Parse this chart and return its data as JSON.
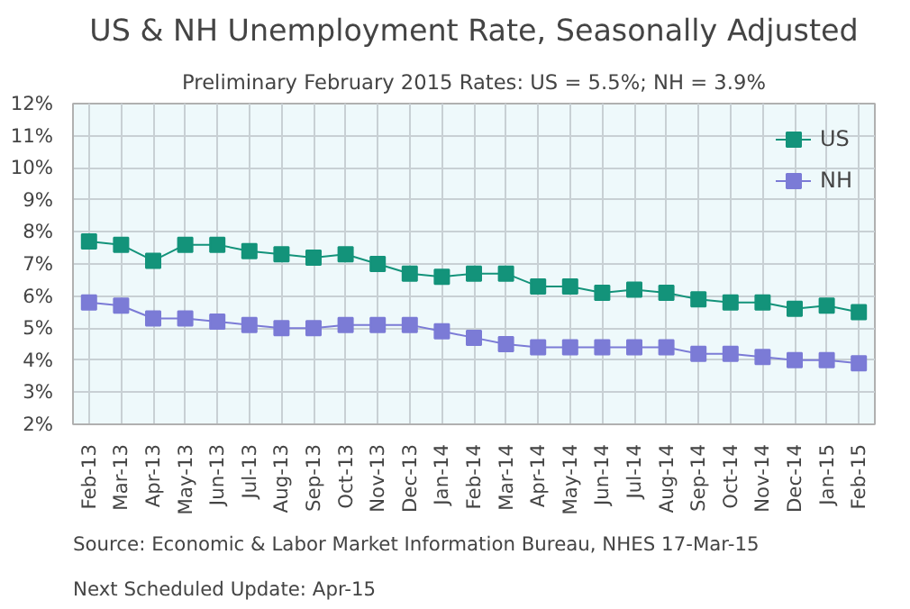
{
  "chart_data": {
    "type": "line",
    "title": "US & NH Unemployment Rate, Seasonally Adjusted",
    "subtitle": "Preliminary February 2015 Rates: US = 5.5%; NH = 3.9%",
    "categories": [
      "Feb-13",
      "Mar-13",
      "Apr-13",
      "May-13",
      "Jun-13",
      "Jul-13",
      "Aug-13",
      "Sep-13",
      "Oct-13",
      "Nov-13",
      "Dec-13",
      "Jan-14",
      "Feb-14",
      "Mar-14",
      "Apr-14",
      "May-14",
      "Jun-14",
      "Jul-14",
      "Aug-14",
      "Sep-14",
      "Oct-14",
      "Nov-14",
      "Dec-14",
      "Jan-15",
      "Feb-15"
    ],
    "series": [
      {
        "name": "US",
        "color": "#13937a",
        "values": [
          7.7,
          7.6,
          7.1,
          7.6,
          7.6,
          7.4,
          7.3,
          7.2,
          7.3,
          7.0,
          6.7,
          6.6,
          6.7,
          6.7,
          6.3,
          6.3,
          6.1,
          6.2,
          6.1,
          5.9,
          5.8,
          5.8,
          5.6,
          5.7,
          5.5
        ]
      },
      {
        "name": "NH",
        "color": "#7b7bd6",
        "values": [
          5.8,
          5.7,
          5.3,
          5.3,
          5.2,
          5.1,
          5.0,
          5.0,
          5.1,
          5.1,
          5.1,
          4.9,
          4.7,
          4.5,
          4.4,
          4.4,
          4.4,
          4.4,
          4.4,
          4.2,
          4.2,
          4.1,
          4.0,
          4.0,
          3.9
        ]
      }
    ],
    "ylim": [
      2,
      12
    ],
    "yticks": [
      {
        "value": 2,
        "label": "2%"
      },
      {
        "value": 3,
        "label": "3%"
      },
      {
        "value": 4,
        "label": "4%"
      },
      {
        "value": 5,
        "label": "5%"
      },
      {
        "value": 6,
        "label": "6%"
      },
      {
        "value": 7,
        "label": "7%"
      },
      {
        "value": 8,
        "label": "8%"
      },
      {
        "value": 9,
        "label": "9%"
      },
      {
        "value": 10,
        "label": "10%"
      },
      {
        "value": 11,
        "label": "11%"
      },
      {
        "value": 12,
        "label": "12%"
      }
    ],
    "grid": true,
    "legend": "top right",
    "marker": "square",
    "line_style": "solid",
    "annotations": [
      "Source: Economic & Labor Market Information Bureau, NHES  17-Mar-15",
      "Next Scheduled Update:  Apr-15"
    ]
  }
}
